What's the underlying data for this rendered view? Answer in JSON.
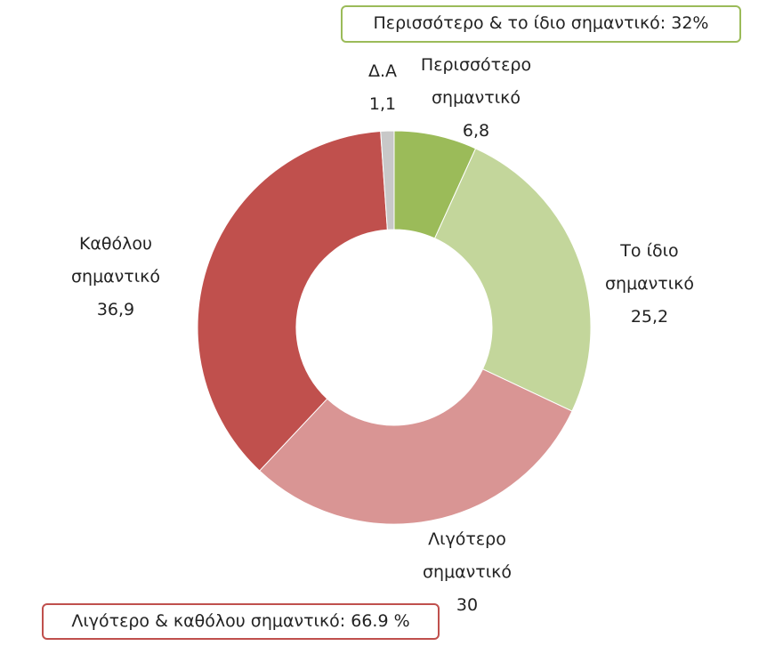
{
  "chart_data": {
    "type": "donut",
    "categories": [
      "Περισσότερο σημαντικό",
      "Το ίδιο σημαντικό",
      "Λιγότερο σημαντικό",
      "Καθόλου σημαντικό",
      "Δ.Α"
    ],
    "values": [
      6.8,
      25.2,
      30,
      36.9,
      1.1
    ],
    "value_labels": [
      "6,8",
      "25,2",
      "30",
      "36,9",
      "1,1"
    ],
    "colors": [
      "#9bbb59",
      "#c3d69b",
      "#d99594",
      "#c0504d",
      "#c8c8c8"
    ],
    "annotations": [
      "Περισσότερο & το ίδιο σημαντικό: 32%",
      "Λιγότερο & καθόλου σημαντικό: 66.9 %"
    ]
  }
}
